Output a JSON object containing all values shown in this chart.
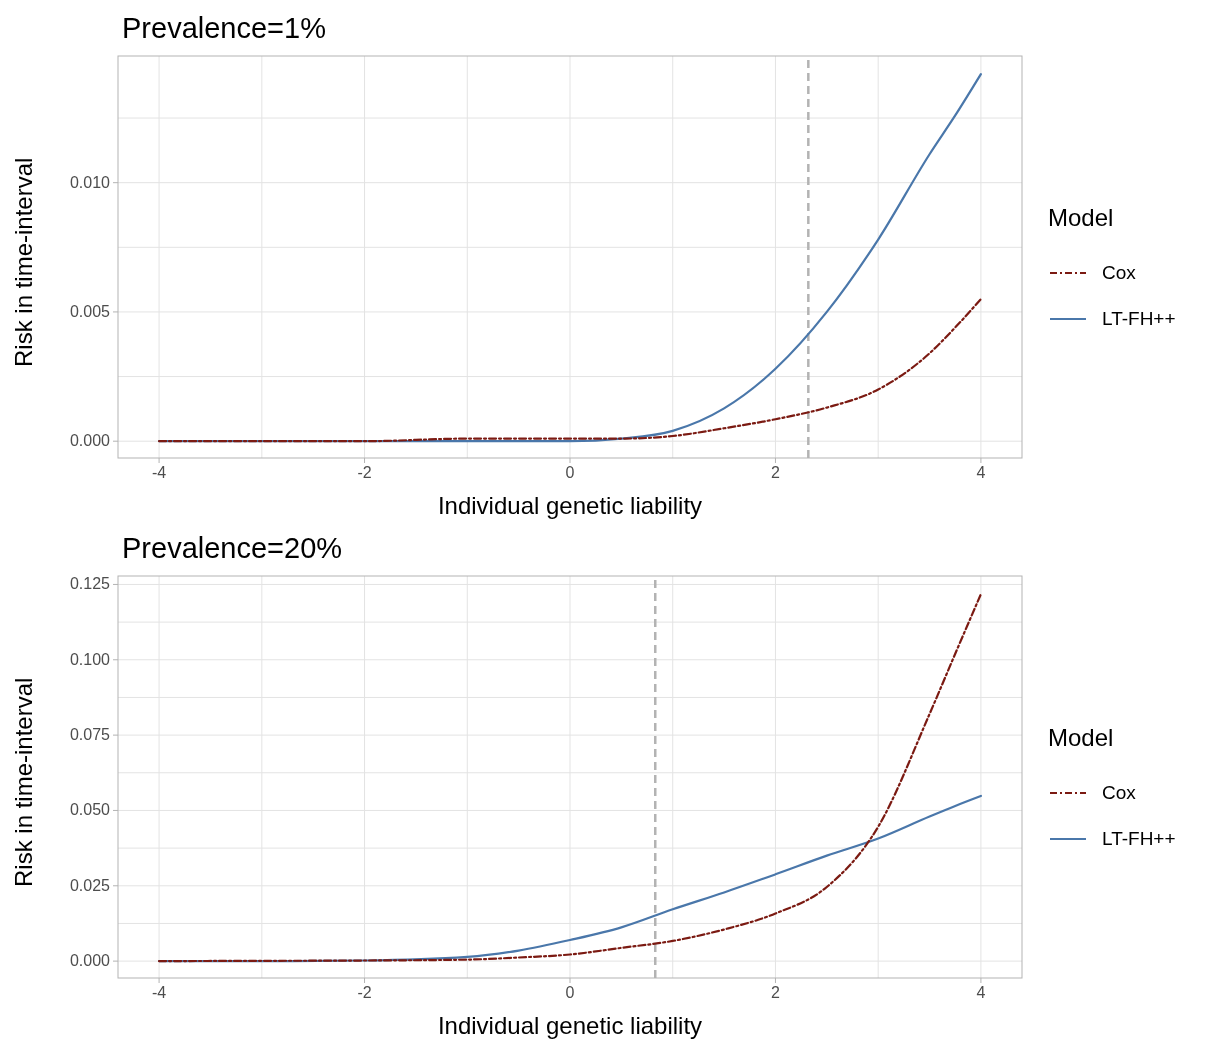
{
  "chart_data": [
    {
      "type": "line",
      "title": "Prevalence=1%",
      "xlabel": "Individual genetic liability",
      "ylabel": "Risk in time-interval",
      "legend_title": "Model",
      "legend": "right",
      "grid": true,
      "x": [
        -4,
        -3,
        -2,
        -1,
        -0.5,
        0,
        0.5,
        1,
        1.5,
        2,
        2.5,
        3,
        3.5,
        3.75,
        4
      ],
      "series": [
        {
          "name": "Cox",
          "color": "#7b1a12",
          "line_style": "dashdot",
          "values": [
            0,
            0,
            0,
            0.0001,
            0.0001,
            0.0001,
            0.0001,
            0.0002,
            0.0005,
            0.00085,
            0.0013,
            0.002,
            0.0034,
            0.0044,
            0.0055
          ]
        },
        {
          "name": "LT-FH++",
          "color": "#4a77aa",
          "line_style": "solid",
          "values": [
            0,
            0,
            0,
            0,
            0,
            0,
            0.0001,
            0.0004,
            0.00127,
            0.0028,
            0.005,
            0.0078,
            0.0111,
            0.0126,
            0.0142
          ]
        }
      ],
      "xlim": [
        -4.4,
        4.4
      ],
      "xticks": [
        -4,
        {
          "value": -3,
          "label": null
        },
        -2,
        {
          "value": -1,
          "label": null
        },
        0,
        {
          "value": 1,
          "label": null
        },
        2,
        {
          "value": 3,
          "label": null
        },
        4
      ],
      "ylim": [
        -0.00065,
        0.0149
      ],
      "yticks": [
        {
          "value": 0,
          "label": "0.000"
        },
        {
          "value": 0.0025,
          "label": null
        },
        {
          "value": 0.005,
          "label": "0.005"
        },
        {
          "value": 0.0075,
          "label": null
        },
        {
          "value": 0.01,
          "label": "0.010"
        },
        {
          "value": 0.0125,
          "label": null
        }
      ],
      "ref_lines": [
        {
          "axis": "x",
          "value": 2.32,
          "color": "#b3b3b3",
          "line_style": "dashed"
        }
      ]
    },
    {
      "type": "line",
      "title": "Prevalence=20%",
      "xlabel": "Individual genetic liability",
      "ylabel": "Risk in time-interval",
      "legend_title": "Model",
      "legend": "right",
      "grid": true,
      "x": [
        -4,
        -3,
        -2,
        -1,
        -0.5,
        0,
        0.5,
        1,
        1.5,
        2,
        2.5,
        3,
        3.5,
        3.75,
        4
      ],
      "series": [
        {
          "name": "Cox",
          "color": "#7b1a12",
          "line_style": "dashdot",
          "values": [
            0,
            0.0001,
            0.0002,
            0.0005,
            0.0012,
            0.0022,
            0.0044,
            0.0067,
            0.0105,
            0.0158,
            0.0246,
            0.0446,
            0.082,
            0.102,
            0.1218
          ]
        },
        {
          "name": "LT-FH++",
          "color": "#4a77aa",
          "line_style": "solid",
          "values": [
            0,
            0,
            0.0002,
            0.0014,
            0.0035,
            0.007,
            0.0112,
            0.0172,
            0.0228,
            0.0288,
            0.035,
            0.0407,
            0.048,
            0.0515,
            0.0548
          ]
        }
      ],
      "xlim": [
        -4.4,
        4.4
      ],
      "xticks": [
        -4,
        {
          "value": -3,
          "label": null
        },
        -2,
        {
          "value": -1,
          "label": null
        },
        0,
        {
          "value": 1,
          "label": null
        },
        2,
        {
          "value": 3,
          "label": null
        },
        4
      ],
      "ylim": [
        -0.0056,
        0.1278
      ],
      "yticks": [
        {
          "value": 0,
          "label": "0.000"
        },
        {
          "value": 0.0125,
          "label": null
        },
        {
          "value": 0.025,
          "label": "0.025"
        },
        {
          "value": 0.0375,
          "label": null
        },
        {
          "value": 0.05,
          "label": "0.050"
        },
        {
          "value": 0.0625,
          "label": null
        },
        {
          "value": 0.075,
          "label": "0.075"
        },
        {
          "value": 0.0875,
          "label": null
        },
        {
          "value": 0.1,
          "label": "0.100"
        },
        {
          "value": 0.1125,
          "label": null
        },
        {
          "value": 0.125,
          "label": "0.125"
        }
      ],
      "ref_lines": [
        {
          "axis": "x",
          "value": 0.83,
          "color": "#b3b3b3",
          "line_style": "dashed"
        }
      ]
    }
  ]
}
